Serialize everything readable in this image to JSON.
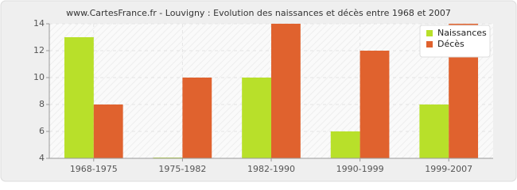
{
  "chart_data": {
    "type": "bar",
    "title": "www.CartesFrance.fr - Louvigny : Evolution des naissances et décès entre 1968 et 2007",
    "categories": [
      "1968-1975",
      "1975-1982",
      "1982-1990",
      "1990-1999",
      "1999-2007"
    ],
    "series": [
      {
        "name": "Naissances",
        "color": "#b8e02a",
        "values": [
          13,
          4,
          10,
          6,
          8
        ]
      },
      {
        "name": "Décès",
        "color": "#e0622e",
        "values": [
          8,
          10,
          14,
          12,
          14
        ]
      }
    ],
    "ylim": [
      4,
      14
    ],
    "yticks": [
      4,
      6,
      8,
      10,
      12,
      14
    ],
    "grid": true,
    "legend": "top-right"
  }
}
